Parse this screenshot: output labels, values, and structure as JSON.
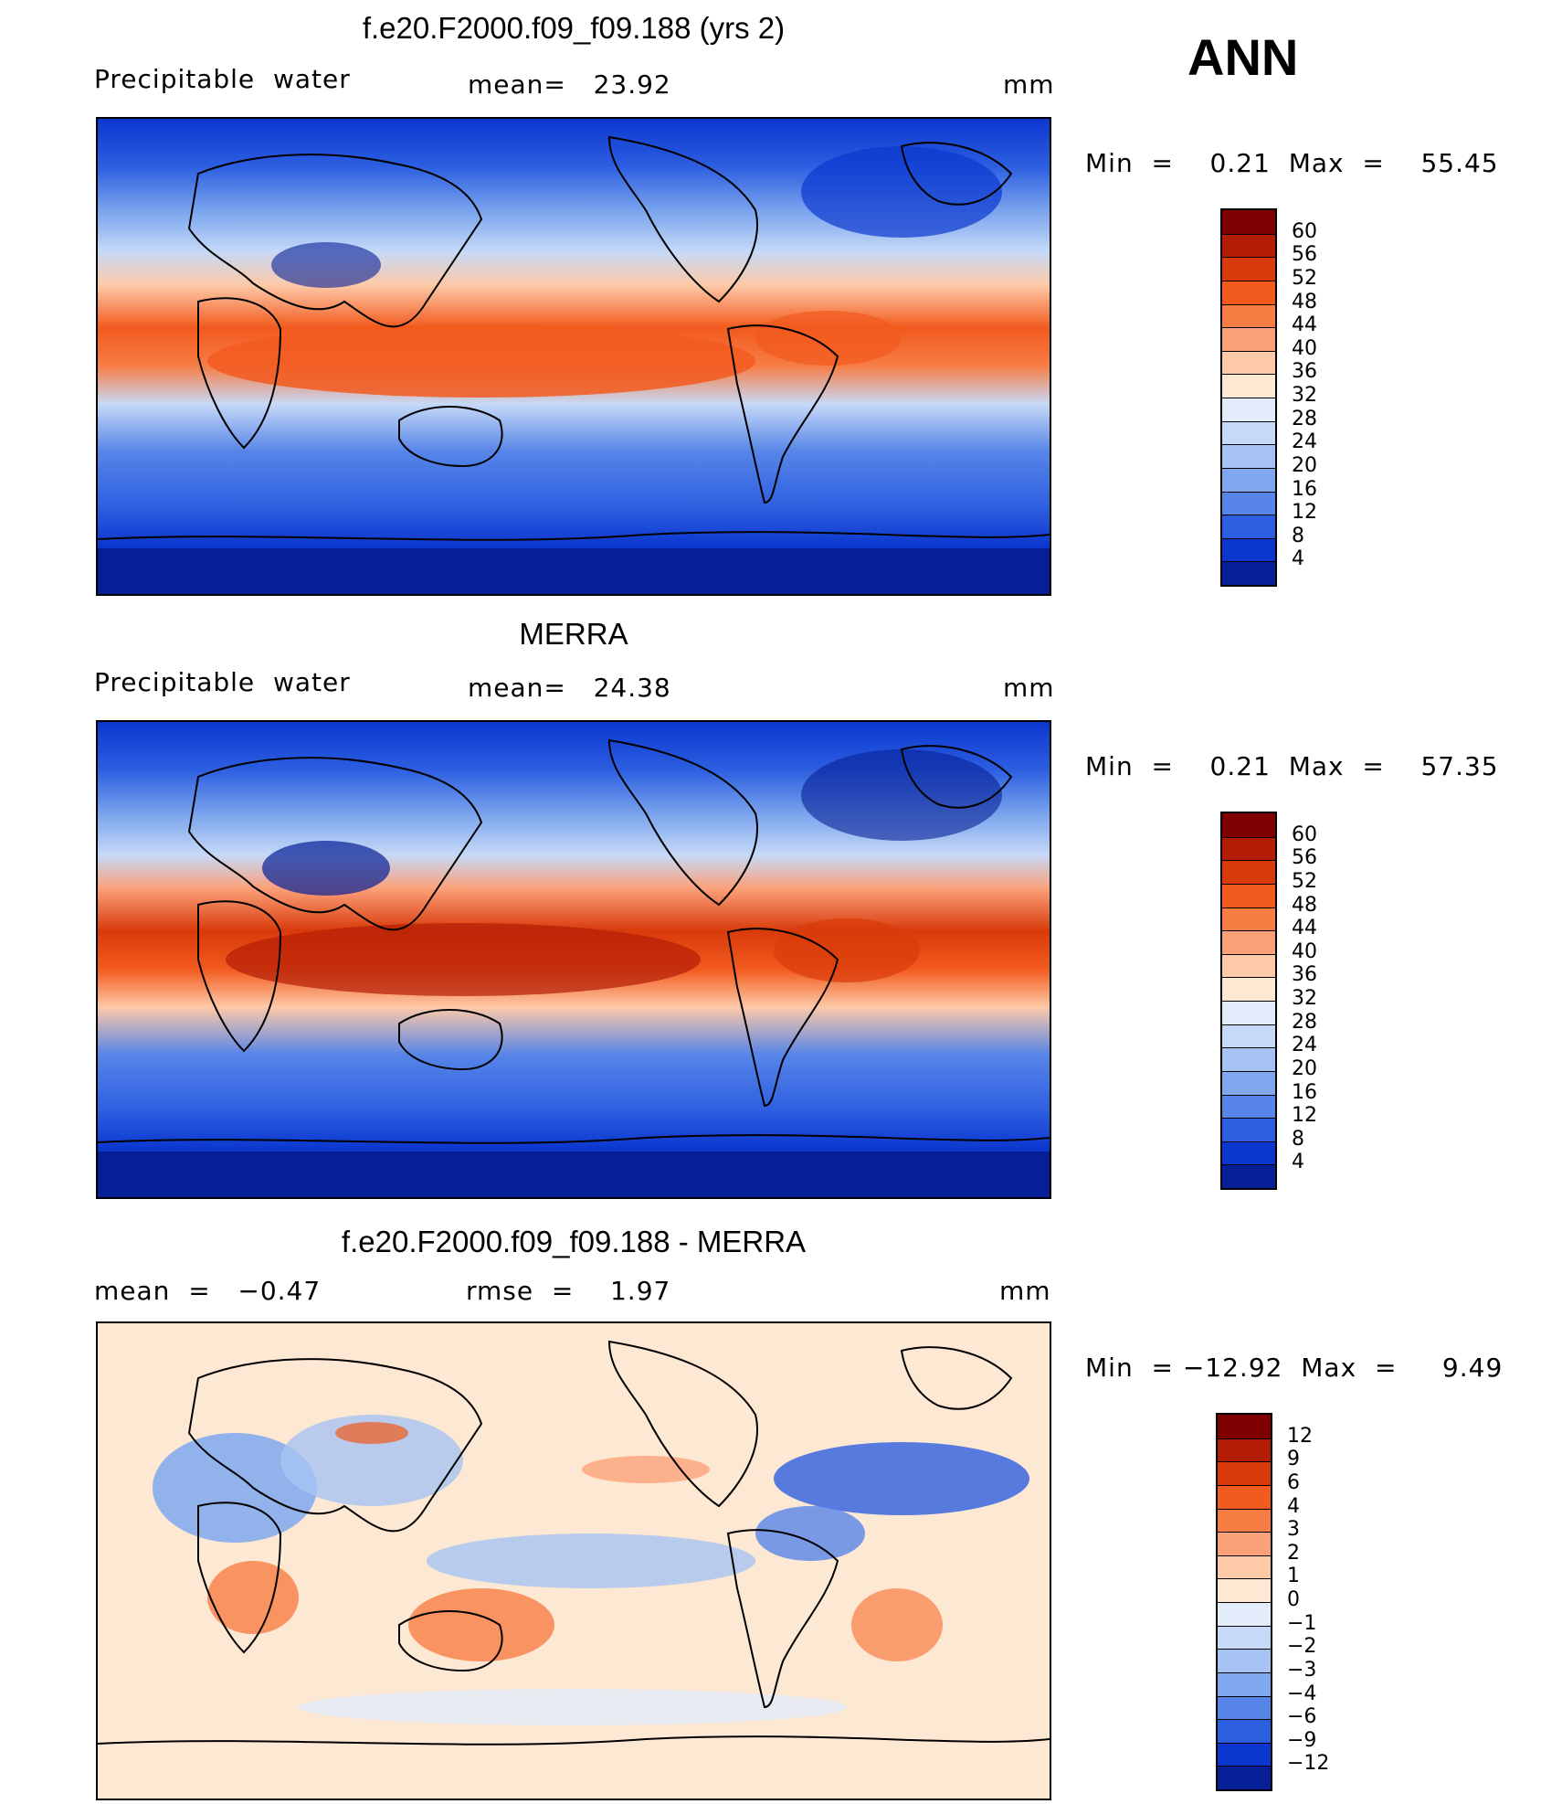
{
  "season": "ANN",
  "panels": [
    {
      "title": "f.e20.F2000.f09_f09.188 (yrs 2)",
      "left_label": "Precipitable  water",
      "center_label": "mean=   23.92",
      "units": "mm",
      "minmax": "Min  =    0.21  Max  =    55.45",
      "colorbar": {
        "labels": [
          "60",
          "56",
          "52",
          "48",
          "44",
          "40",
          "36",
          "32",
          "28",
          "24",
          "20",
          "16",
          "12",
          "8",
          "4"
        ],
        "colors": [
          "#7f0000",
          "#b31d05",
          "#d93a0a",
          "#f25a1e",
          "#f77d45",
          "#fba17a",
          "#fdc9a7",
          "#fde8d3",
          "#e2ecfa",
          "#c6d9f7",
          "#a6c3f3",
          "#7fa8ee",
          "#5785e8",
          "#2c5ee0",
          "#0b37cf",
          "#061f96"
        ]
      }
    },
    {
      "title": "MERRA",
      "left_label": "Precipitable  water",
      "center_label": "mean=   24.38",
      "units": "mm",
      "minmax": "Min  =    0.21  Max  =    57.35",
      "colorbar": {
        "labels": [
          "60",
          "56",
          "52",
          "48",
          "44",
          "40",
          "36",
          "32",
          "28",
          "24",
          "20",
          "16",
          "12",
          "8",
          "4"
        ],
        "colors": [
          "#7f0000",
          "#b31d05",
          "#d93a0a",
          "#f25a1e",
          "#f77d45",
          "#fba17a",
          "#fdc9a7",
          "#fde8d3",
          "#e2ecfa",
          "#c6d9f7",
          "#a6c3f3",
          "#7fa8ee",
          "#5785e8",
          "#2c5ee0",
          "#0b37cf",
          "#061f96"
        ]
      }
    },
    {
      "title": "f.e20.F2000.f09_f09.188 - MERRA",
      "left_label": "mean  =   −0.47",
      "center_label": "rmse  =    1.97",
      "units": "mm",
      "minmax": "Min  = −12.92  Max  =     9.49",
      "colorbar": {
        "labels": [
          "12",
          "9",
          "6",
          "4",
          "3",
          "2",
          "1",
          "0",
          "−1",
          "−2",
          "−3",
          "−4",
          "−6",
          "−9",
          "−12"
        ],
        "colors": [
          "#7f0000",
          "#b31d05",
          "#d93a0a",
          "#f25a1e",
          "#f77d45",
          "#fba17a",
          "#fdc9a7",
          "#fde8d3",
          "#e2ecfa",
          "#c6d9f7",
          "#a6c3f3",
          "#7fa8ee",
          "#5785e8",
          "#2c5ee0",
          "#0b37cf",
          "#061f96"
        ]
      }
    }
  ]
}
